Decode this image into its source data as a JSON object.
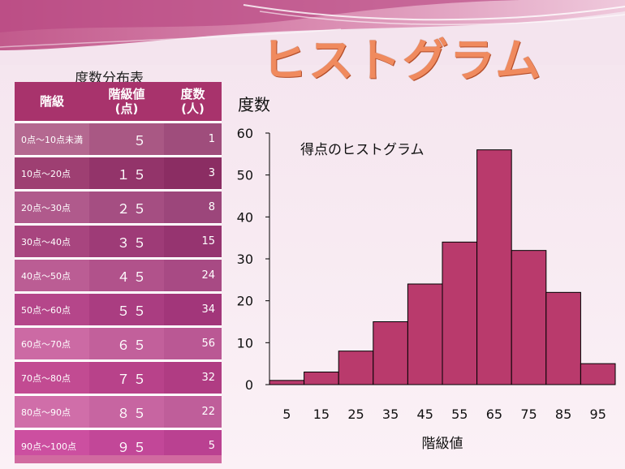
{
  "slide_title": "ヒストグラム",
  "table": {
    "title": "度数分布表",
    "headers": [
      "階級",
      "階級値\n(点)",
      "度数\n(人)"
    ],
    "rows": [
      {
        "range": "0点～10点未満",
        "mid": "５",
        "freq": "1"
      },
      {
        "range": "10点～20点",
        "mid": "１５",
        "freq": "3"
      },
      {
        "range": "20点～30点",
        "mid": "２５",
        "freq": "8"
      },
      {
        "range": "30点～40点",
        "mid": "３５",
        "freq": "15"
      },
      {
        "range": "40点～50点",
        "mid": "４５",
        "freq": "24"
      },
      {
        "range": "50点～60点",
        "mid": "５５",
        "freq": "34"
      },
      {
        "range": "60点～70点",
        "mid": "６５",
        "freq": "56"
      },
      {
        "range": "70点～80点",
        "mid": "７５",
        "freq": "32"
      },
      {
        "range": "80点～90点",
        "mid": "８５",
        "freq": "22"
      },
      {
        "range": "90点～100点",
        "mid": "９５",
        "freq": "5"
      }
    ]
  },
  "chart_data": {
    "type": "bar",
    "title": "得点のヒストグラム",
    "ylabel": "度数",
    "xlabel": "階級値",
    "categories": [
      "5",
      "15",
      "25",
      "35",
      "45",
      "55",
      "65",
      "75",
      "85",
      "95"
    ],
    "values": [
      1,
      3,
      8,
      15,
      24,
      34,
      56,
      32,
      22,
      5
    ],
    "ylim": [
      0,
      60
    ],
    "yticks": [
      0,
      10,
      20,
      30,
      40,
      50,
      60
    ],
    "bar_color": "#b93a6c",
    "grid": false
  }
}
